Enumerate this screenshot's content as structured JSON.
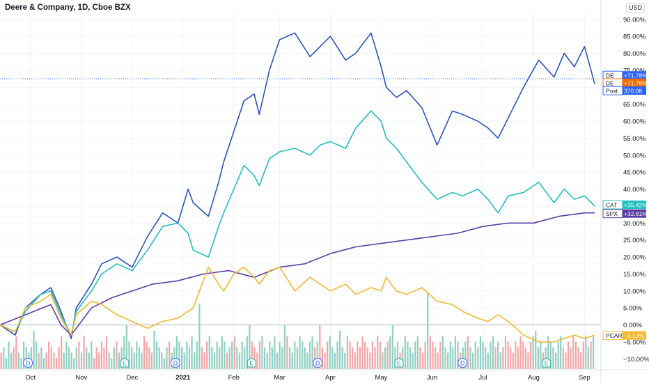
{
  "header": {
    "title": "Deere & Company, 1D, Cboe BZX",
    "currency": "USD"
  },
  "chart_data": {
    "type": "line",
    "y_unit": "%",
    "ylim": [
      -13,
      92
    ],
    "y_ticks": [
      90,
      85,
      80,
      75,
      70,
      65,
      60,
      55,
      50,
      45,
      40,
      35,
      30,
      25,
      20,
      15,
      10,
      5,
      0,
      -5,
      -10
    ],
    "y_tick_labels": [
      "90.00%",
      "85.00%",
      "80.00%",
      "75.00%",
      "70.00%",
      "65.00%",
      "60.00%",
      "55.00%",
      "50.00%",
      "45.00%",
      "40.00%",
      "35.00%",
      "30.00%",
      "25.00%",
      "20.00%",
      "15.00%",
      "10.00%",
      "5.00%",
      "0.00%",
      "−5.00%",
      "−10.00%"
    ],
    "x_ticks": [
      {
        "x": 0.6,
        "label": "Oct"
      },
      {
        "x": 1.6,
        "label": "Nov"
      },
      {
        "x": 2.6,
        "label": "Dec"
      },
      {
        "x": 3.6,
        "label": "2021"
      },
      {
        "x": 4.6,
        "label": "Feb"
      },
      {
        "x": 5.5,
        "label": "Mar"
      },
      {
        "x": 6.5,
        "label": "Apr"
      },
      {
        "x": 7.5,
        "label": "May"
      },
      {
        "x": 8.5,
        "label": "Jun"
      },
      {
        "x": 9.5,
        "label": "Jul"
      },
      {
        "x": 10.5,
        "label": "Aug"
      },
      {
        "x": 11.5,
        "label": "Sep"
      }
    ],
    "x_range": [
      0,
      11.7
    ],
    "series": [
      {
        "name": "DE",
        "color": "#2a52be",
        "x": [
          0.0,
          0.3,
          0.5,
          0.8,
          1.0,
          1.2,
          1.4,
          1.5,
          1.8,
          2.0,
          2.3,
          2.6,
          2.9,
          3.2,
          3.5,
          3.7,
          3.8,
          4.1,
          4.3,
          4.4,
          4.6,
          4.8,
          5.0,
          5.1,
          5.3,
          5.5,
          5.8,
          6.1,
          6.3,
          6.5,
          6.8,
          7.0,
          7.3,
          7.5,
          7.6,
          7.8,
          8.0,
          8.3,
          8.6,
          8.9,
          9.1,
          9.4,
          9.6,
          9.8,
          10.0,
          10.3,
          10.6,
          10.9,
          11.1,
          11.3,
          11.5,
          11.7
        ],
        "values": [
          0,
          -3,
          5,
          9,
          11,
          4,
          -4,
          5,
          12,
          18,
          20,
          17,
          26,
          33,
          30,
          40,
          36,
          32,
          42,
          48,
          57,
          66,
          68,
          62,
          75,
          84,
          86,
          79,
          82,
          85,
          78,
          80,
          86,
          76,
          70,
          67,
          69,
          64,
          53,
          63,
          62,
          60,
          58,
          55,
          61,
          70,
          78,
          73,
          80,
          76,
          82,
          71
        ]
      },
      {
        "name": "CAT",
        "color": "#22bebe",
        "x": [
          0.0,
          0.3,
          0.5,
          0.8,
          1.0,
          1.2,
          1.4,
          1.5,
          1.8,
          2.0,
          2.3,
          2.6,
          2.9,
          3.2,
          3.5,
          3.7,
          3.8,
          4.1,
          4.3,
          4.4,
          4.6,
          4.8,
          5.0,
          5.1,
          5.3,
          5.5,
          5.8,
          6.1,
          6.3,
          6.5,
          6.8,
          7.0,
          7.3,
          7.5,
          7.6,
          7.8,
          8.0,
          8.3,
          8.6,
          8.9,
          9.1,
          9.4,
          9.6,
          9.8,
          10.0,
          10.3,
          10.6,
          10.9,
          11.1,
          11.3,
          11.5,
          11.7
        ],
        "values": [
          0,
          -2,
          4,
          9,
          10,
          3,
          -3,
          4,
          10,
          15,
          18,
          16,
          22,
          29,
          30,
          27,
          22,
          20,
          29,
          33,
          40,
          47,
          44,
          41,
          49,
          51,
          52,
          50,
          53,
          54,
          52,
          58,
          63,
          60,
          55,
          52,
          48,
          42,
          37,
          39,
          38,
          40,
          37,
          33,
          38,
          39,
          42,
          36,
          40,
          37,
          38,
          35
        ]
      },
      {
        "name": "SPX",
        "color": "#5b3ca6",
        "x": [
          0.0,
          0.5,
          1.0,
          1.2,
          1.4,
          1.8,
          2.2,
          2.6,
          3.0,
          3.5,
          4.0,
          4.5,
          5.0,
          5.5,
          6.0,
          6.5,
          7.0,
          7.5,
          8.0,
          8.5,
          9.0,
          9.5,
          10.0,
          10.5,
          11.0,
          11.5,
          11.7
        ],
        "values": [
          0,
          3,
          6,
          0,
          -3,
          5,
          8,
          10,
          12,
          13,
          15,
          16,
          14,
          17,
          18,
          21,
          23,
          24,
          25,
          26,
          27,
          29,
          30,
          30,
          32,
          33,
          33
        ]
      },
      {
        "name": "PCAR",
        "color": "#f0b92b",
        "x": [
          0.0,
          0.3,
          0.5,
          0.8,
          1.0,
          1.2,
          1.4,
          1.5,
          1.8,
          2.0,
          2.3,
          2.6,
          2.9,
          3.2,
          3.5,
          3.7,
          3.8,
          4.1,
          4.3,
          4.4,
          4.6,
          4.8,
          5.0,
          5.1,
          5.3,
          5.5,
          5.8,
          6.1,
          6.3,
          6.5,
          6.8,
          7.0,
          7.3,
          7.5,
          7.6,
          7.8,
          8.0,
          8.3,
          8.6,
          8.9,
          9.1,
          9.4,
          9.6,
          9.8,
          10.0,
          10.3,
          10.6,
          10.9,
          11.1,
          11.3,
          11.5,
          11.7
        ],
        "values": [
          0,
          -2,
          5,
          7,
          9,
          2,
          -3,
          3,
          7,
          6,
          3,
          1,
          -1,
          1,
          2,
          4,
          5,
          17,
          12,
          10,
          15,
          17,
          14,
          12,
          16,
          17,
          10,
          14,
          12,
          10,
          12,
          9,
          11,
          10,
          14,
          10,
          9,
          11,
          7,
          6,
          4,
          2,
          1,
          3,
          1,
          -3,
          -5,
          -5,
          -4,
          -3,
          -4,
          -3
        ]
      }
    ],
    "volume": [
      3,
      4,
      2,
      5,
      3,
      4,
      6,
      3,
      2,
      5,
      4,
      3,
      4,
      7,
      5,
      3,
      4,
      2,
      3,
      5,
      4,
      3,
      2,
      4,
      6,
      3,
      5,
      4,
      3,
      2,
      4,
      5,
      3,
      6,
      4,
      3,
      5,
      2,
      4,
      3,
      5,
      4,
      6,
      3,
      2,
      4,
      5,
      3,
      4,
      6,
      8,
      5,
      4,
      3,
      5,
      4,
      3,
      6,
      5,
      4,
      3,
      7,
      5,
      4,
      3,
      2,
      4,
      5,
      3,
      4,
      6,
      5,
      4,
      3,
      5,
      4,
      6,
      3,
      5,
      12,
      4,
      3,
      5,
      6,
      4,
      3,
      5,
      4,
      6,
      5,
      3,
      4,
      5,
      6,
      4,
      3,
      5,
      4,
      6,
      8,
      5,
      4,
      3,
      5,
      6,
      4,
      3,
      5,
      4,
      6,
      3,
      5,
      4,
      8,
      6,
      4,
      3,
      5,
      4,
      6,
      5,
      4,
      3,
      5,
      6,
      4,
      5,
      8,
      4,
      3,
      5,
      6,
      4,
      3,
      5,
      7,
      4,
      3,
      6,
      5,
      4,
      3,
      5,
      4,
      6,
      5,
      4,
      3,
      5,
      4,
      6,
      5,
      3,
      4,
      5,
      6,
      8,
      4,
      5,
      3,
      4,
      6,
      5,
      4,
      3,
      5,
      6,
      4,
      3,
      5,
      14,
      6,
      5,
      4,
      3,
      5,
      6,
      4,
      3,
      5,
      4,
      6,
      5,
      3,
      4,
      5,
      6,
      4,
      3,
      5,
      4,
      6,
      5,
      4,
      3,
      5,
      6,
      4,
      5,
      3,
      4,
      6,
      5,
      4,
      3,
      5,
      4,
      6,
      5,
      4,
      3,
      5,
      6,
      7,
      4,
      5,
      3,
      4,
      6,
      5,
      4,
      3,
      5,
      6,
      4,
      3,
      5,
      4,
      6,
      5,
      4,
      3,
      5,
      6,
      4,
      5,
      6
    ],
    "events": [
      {
        "x": 0.55,
        "label": "D"
      },
      {
        "x": 2.45,
        "label": "E"
      },
      {
        "x": 3.45,
        "label": "D"
      },
      {
        "x": 4.95,
        "label": "E"
      },
      {
        "x": 6.25,
        "label": "D"
      },
      {
        "x": 7.85,
        "label": "E"
      },
      {
        "x": 9.1,
        "label": "D"
      },
      {
        "x": 10.75,
        "label": "E"
      }
    ],
    "price_line": {
      "value": 72.5,
      "color": "#2962ff"
    },
    "zero_line": 0,
    "legend_tags": [
      {
        "label": "DE",
        "value": "+71.78%",
        "color": "#2962ff",
        "y": 73.5
      },
      {
        "label": "DE",
        "value": "+71.78%",
        "color": "#ef6c00",
        "y": 71.3
      },
      {
        "label": "Post",
        "value": "370.08",
        "color": "#2962ff",
        "y": 69.0
      },
      {
        "label": "CAT",
        "value": "+35.42%",
        "color": "#22bebe",
        "y": 35.4
      },
      {
        "label": "SPX",
        "value": "+32.81%",
        "color": "#5b3ca6",
        "y": 32.8
      },
      {
        "label": "PCAR",
        "value": "−3.13%",
        "color": "#f0b92b",
        "y": -3.1
      }
    ]
  }
}
